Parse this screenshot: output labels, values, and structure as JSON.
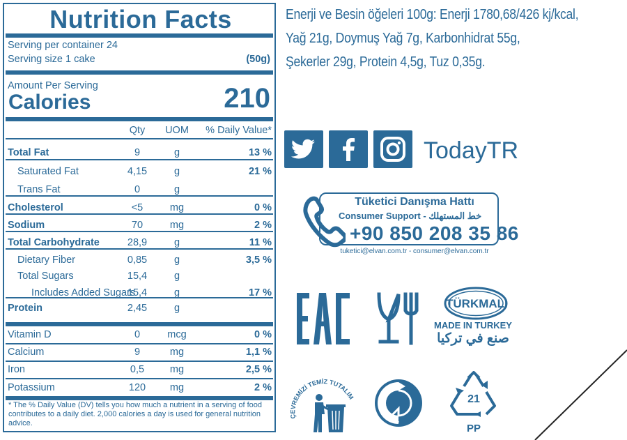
{
  "nutrition": {
    "title": "Nutrition Facts",
    "servings_per_container": "Serving per container 24",
    "serving_size_label": "Serving size 1 cake",
    "serving_size_value": "(50g)",
    "amount_per_serving": "Amount Per Serving",
    "calories_label": "Calories",
    "calories_value": "210",
    "col_qty": "Qty",
    "col_uom": "UOM",
    "col_dv": "% Daily Value*",
    "rows": [
      {
        "name": "Total Fat",
        "qty": "9",
        "uom": "g",
        "dv": "13 %"
      },
      {
        "name": "Saturated Fat",
        "qty": "4,15",
        "uom": "g",
        "dv": "21 %"
      },
      {
        "name": "Trans Fat",
        "qty": "0",
        "uom": "g",
        "dv": ""
      },
      {
        "name": "Cholesterol",
        "qty": "<5",
        "uom": "mg",
        "dv": "0 %"
      },
      {
        "name": "Sodium",
        "qty": "70",
        "uom": "mg",
        "dv": "2 %"
      },
      {
        "name": "Total Carbohydrate",
        "qty": "28,9",
        "uom": "g",
        "dv": "11 %"
      },
      {
        "name": "Dietary Fiber",
        "qty": "0,85",
        "uom": "g",
        "dv": "3,5 %"
      },
      {
        "name": "Total Sugars",
        "qty": "15,4",
        "uom": "g",
        "dv": ""
      },
      {
        "name": "Includes Added Sugars",
        "qty": "15,4",
        "uom": "g",
        "dv": "17 %"
      },
      {
        "name": "Protein",
        "qty": "2,45",
        "uom": "g",
        "dv": ""
      }
    ],
    "vitamins": [
      {
        "name": "Vitamin D",
        "qty": "0",
        "uom": "mcg",
        "dv": "0 %"
      },
      {
        "name": "Calcium",
        "qty": "9",
        "uom": "mg",
        "dv": "1,1 %"
      },
      {
        "name": "Iron",
        "qty": "0,5",
        "uom": "mg",
        "dv": "2,5 %"
      },
      {
        "name": "Potassium",
        "qty": "120",
        "uom": "mg",
        "dv": "2 %"
      }
    ],
    "footnote": "* The % Daily Value (DV) tells you how much a nutrient in a serving of food contributes to a daily diet. 2,000 calories a day is used for general nutrition advice."
  },
  "ingredients": {
    "line1": "Enerji ve Besin öğeleri 100g: Enerji 1780,68/426 kj/kcal,",
    "line2": "Yağ 21g, Doymuş Yağ 7g, Karbonhidrat 55g,",
    "line3": "Şekerler 29g, Protein 4,5g, Tuz 0,35g."
  },
  "social": {
    "icons": [
      "twitter-icon",
      "facebook-icon",
      "instagram-icon"
    ],
    "brand": "TodayTR"
  },
  "support": {
    "title": "Tüketici Danışma Hattı",
    "subtitle": "Consumer Support - خط المستهلك",
    "phone": "+90 850 208 35 86",
    "emails": "tuketici@elvan.com.tr - consumer@elvan.com.tr"
  },
  "symbols": {
    "eac": "EAC",
    "turkmali": "TÜRKMALI",
    "made_in": "MADE IN TURKEY",
    "made_in_arabic": "صنع في تركيا",
    "tidyman_text": "ÇEVREMİZİ TEMİZ TUTALIM",
    "recycle_number": "21",
    "recycle_material": "PP"
  },
  "colors": {
    "primary": "#2b6a98",
    "background": "#ffffff"
  }
}
